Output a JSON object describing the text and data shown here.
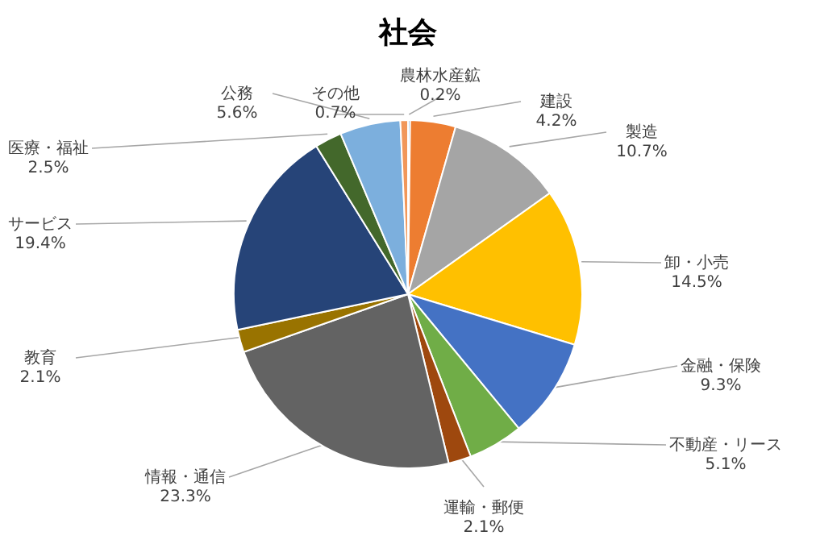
{
  "chart_data": {
    "type": "pie",
    "title": "社会",
    "categories": [
      "農林水産鉱",
      "建設",
      "製造",
      "卸・小売",
      "金融・保険",
      "不動産・リース",
      "運輸・郵便",
      "情報・通信",
      "教育",
      "サービス",
      "医療・福祉",
      "公務",
      "その他"
    ],
    "values": [
      0.2,
      4.2,
      10.7,
      14.5,
      9.3,
      5.1,
      2.1,
      23.3,
      2.1,
      19.4,
      2.5,
      5.6,
      0.7
    ],
    "value_labels": [
      "0.2%",
      "4.2%",
      "10.7%",
      "14.5%",
      "9.3%",
      "5.1%",
      "2.1%",
      "23.3%",
      "2.1%",
      "19.4%",
      "2.5%",
      "5.6%",
      "0.7%"
    ],
    "colors": [
      "#5b9bd5",
      "#ed7d31",
      "#a5a5a5",
      "#ffc000",
      "#4472c4",
      "#70ad47",
      "#9e480e",
      "#636363",
      "#997300",
      "#264478",
      "#43682b",
      "#7cafdd",
      "#f1975a"
    ],
    "legend": false
  }
}
